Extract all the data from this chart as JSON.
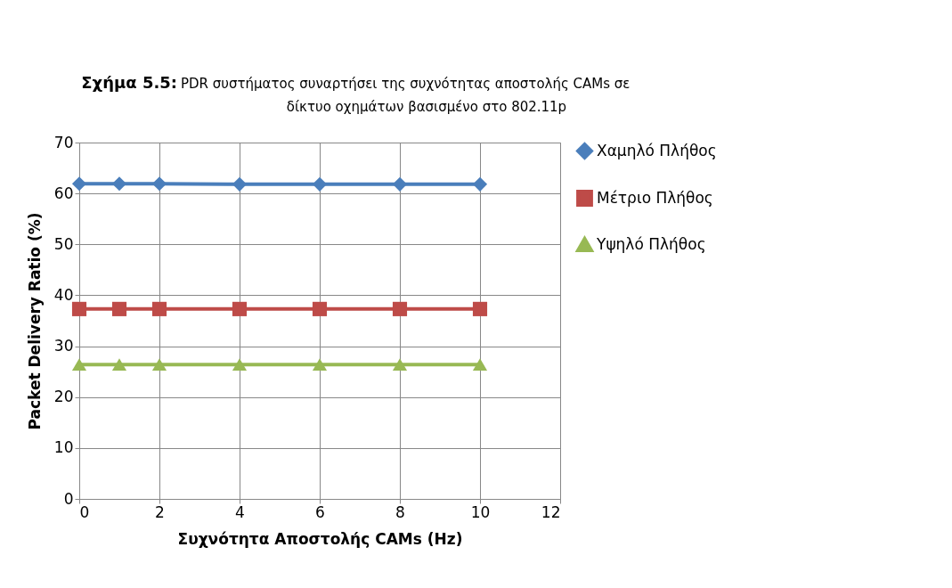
{
  "chart_data": {
    "type": "line",
    "title": "Σχήμα 5.5:",
    "subtitle": "PDR συστήματος συναρτήσει της συχνότητας αποστολής CAMs σε\nδίκτυο οχημάτων βασισμένο στο  802.11p",
    "xlabel": "Συχνότητα Αποστολής CAMs (Hz)",
    "ylabel": "Packet Delivery Ratio (%)",
    "x": [
      0,
      1,
      2,
      4,
      6,
      8,
      10
    ],
    "series": [
      {
        "name": "Χαμηλό Πλήθος",
        "color": "#4a7ebb",
        "marker": "diamond",
        "values": [
          61.9,
          61.9,
          61.9,
          61.8,
          61.8,
          61.8,
          61.8
        ]
      },
      {
        "name": "Μέτριο Πλήθος",
        "color": "#be4b48",
        "marker": "square",
        "values": [
          37.3,
          37.3,
          37.3,
          37.3,
          37.3,
          37.3,
          37.3
        ]
      },
      {
        "name": "Υψηλό Πλήθος",
        "color": "#98b954",
        "marker": "triangle",
        "values": [
          26.4,
          26.4,
          26.4,
          26.4,
          26.4,
          26.4,
          26.4
        ]
      }
    ],
    "xlim": [
      0,
      12
    ],
    "xticks": [
      0,
      2,
      4,
      6,
      8,
      10,
      12
    ],
    "ylim": [
      0,
      70
    ],
    "yticks": [
      0,
      10,
      20,
      30,
      40,
      50,
      60,
      70
    ],
    "grid": true,
    "legend": "right",
    "line_style": "solid"
  }
}
